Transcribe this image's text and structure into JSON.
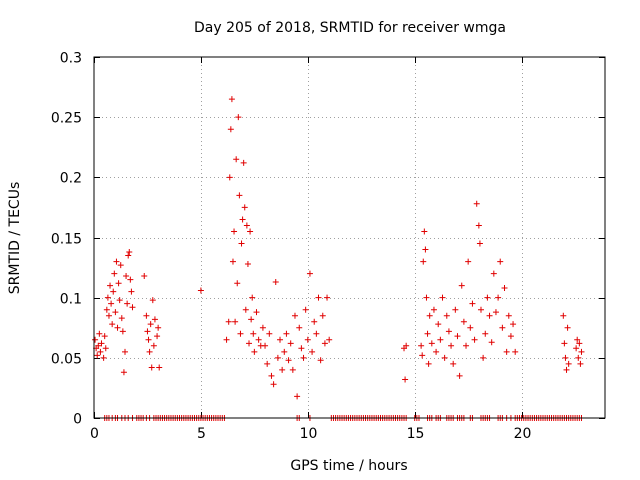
{
  "chart_data": {
    "type": "scatter",
    "title": "Day 205 of 2018, SRMTID for receiver wmga",
    "xlabel": "GPS time / hours",
    "ylabel": "SRMTID / TECUs",
    "xlim": [
      0,
      23.9
    ],
    "ylim": [
      0,
      0.3
    ],
    "grid": true,
    "marker": "+",
    "color": "#e00000",
    "x_ticks": [
      0,
      5,
      10,
      15,
      20
    ],
    "x_tick_labels": [
      "0",
      "5",
      "10",
      "15",
      "20"
    ],
    "y_ticks": [
      0,
      0.05,
      0.1,
      0.15,
      0.2,
      0.25,
      0.3
    ],
    "y_tick_labels": [
      "0",
      "0.05",
      "0.1",
      "0.15",
      "0.2",
      "0.25",
      "0.3"
    ],
    "series": [
      {
        "name": "SRMTID",
        "points": [
          [
            0.05,
            0.065
          ],
          [
            0.1,
            0.058
          ],
          [
            0.15,
            0.052
          ],
          [
            0.2,
            0.06
          ],
          [
            0.25,
            0.07
          ],
          [
            0.3,
            0.055
          ],
          [
            0.35,
            0.062
          ],
          [
            0.45,
            0.05
          ],
          [
            0.5,
            0.068
          ],
          [
            0.55,
            0.058
          ],
          [
            0.6,
            0.09
          ],
          [
            0.65,
            0.1
          ],
          [
            0.7,
            0.085
          ],
          [
            0.75,
            0.11
          ],
          [
            0.8,
            0.095
          ],
          [
            0.85,
            0.078
          ],
          [
            0.9,
            0.105
          ],
          [
            0.95,
            0.12
          ],
          [
            1.0,
            0.088
          ],
          [
            1.05,
            0.13
          ],
          [
            1.1,
            0.075
          ],
          [
            1.15,
            0.112
          ],
          [
            1.2,
            0.098
          ],
          [
            1.25,
            0.127
          ],
          [
            1.3,
            0.083
          ],
          [
            1.35,
            0.072
          ],
          [
            1.4,
            0.038
          ],
          [
            1.45,
            0.055
          ],
          [
            1.5,
            0.118
          ],
          [
            1.55,
            0.095
          ],
          [
            1.6,
            0.135
          ],
          [
            1.65,
            0.138
          ],
          [
            1.7,
            0.115
          ],
          [
            1.75,
            0.105
          ],
          [
            1.8,
            0.092
          ],
          [
            2.35,
            0.118
          ],
          [
            2.45,
            0.085
          ],
          [
            2.5,
            0.072
          ],
          [
            2.55,
            0.065
          ],
          [
            2.6,
            0.055
          ],
          [
            2.65,
            0.078
          ],
          [
            2.7,
            0.042
          ],
          [
            2.75,
            0.098
          ],
          [
            2.8,
            0.06
          ],
          [
            2.85,
            0.082
          ],
          [
            2.95,
            0.068
          ],
          [
            3.0,
            0.075
          ],
          [
            3.05,
            0.042
          ],
          [
            5.0,
            0.106
          ],
          [
            6.2,
            0.065
          ],
          [
            6.3,
            0.08
          ],
          [
            6.35,
            0.2
          ],
          [
            6.4,
            0.24
          ],
          [
            6.45,
            0.265
          ],
          [
            6.5,
            0.13
          ],
          [
            6.55,
            0.155
          ],
          [
            6.6,
            0.08
          ],
          [
            6.65,
            0.215
          ],
          [
            6.7,
            0.112
          ],
          [
            6.75,
            0.25
          ],
          [
            6.8,
            0.185
          ],
          [
            6.85,
            0.07
          ],
          [
            6.9,
            0.145
          ],
          [
            6.95,
            0.165
          ],
          [
            7.0,
            0.212
          ],
          [
            7.05,
            0.175
          ],
          [
            7.1,
            0.09
          ],
          [
            7.15,
            0.16
          ],
          [
            7.2,
            0.128
          ],
          [
            7.25,
            0.062
          ],
          [
            7.3,
            0.155
          ],
          [
            7.35,
            0.082
          ],
          [
            7.4,
            0.1
          ],
          [
            7.45,
            0.07
          ],
          [
            7.5,
            0.055
          ],
          [
            7.6,
            0.088
          ],
          [
            7.7,
            0.065
          ],
          [
            7.8,
            0.06
          ],
          [
            7.9,
            0.075
          ],
          [
            8.0,
            0.06
          ],
          [
            8.1,
            0.045
          ],
          [
            8.2,
            0.07
          ],
          [
            8.3,
            0.035
          ],
          [
            8.4,
            0.028
          ],
          [
            8.5,
            0.113
          ],
          [
            8.6,
            0.05
          ],
          [
            8.7,
            0.065
          ],
          [
            8.8,
            0.04
          ],
          [
            8.9,
            0.055
          ],
          [
            9.0,
            0.07
          ],
          [
            9.1,
            0.048
          ],
          [
            9.2,
            0.062
          ],
          [
            9.3,
            0.04
          ],
          [
            9.4,
            0.085
          ],
          [
            9.5,
            0.018
          ],
          [
            9.6,
            0.075
          ],
          [
            9.7,
            0.058
          ],
          [
            9.8,
            0.05
          ],
          [
            9.9,
            0.09
          ],
          [
            10.0,
            0.065
          ],
          [
            10.1,
            0.12
          ],
          [
            10.2,
            0.055
          ],
          [
            10.3,
            0.08
          ],
          [
            10.4,
            0.07
          ],
          [
            10.5,
            0.1
          ],
          [
            10.6,
            0.048
          ],
          [
            10.7,
            0.085
          ],
          [
            10.8,
            0.062
          ],
          [
            10.9,
            0.1
          ],
          [
            11.0,
            0.065
          ],
          [
            14.5,
            0.058
          ],
          [
            14.55,
            0.032
          ],
          [
            14.6,
            0.06
          ],
          [
            15.3,
            0.06
          ],
          [
            15.35,
            0.052
          ],
          [
            15.4,
            0.13
          ],
          [
            15.45,
            0.155
          ],
          [
            15.5,
            0.14
          ],
          [
            15.55,
            0.1
          ],
          [
            15.6,
            0.07
          ],
          [
            15.65,
            0.045
          ],
          [
            15.7,
            0.085
          ],
          [
            15.8,
            0.062
          ],
          [
            15.9,
            0.09
          ],
          [
            16.0,
            0.055
          ],
          [
            16.1,
            0.078
          ],
          [
            16.2,
            0.065
          ],
          [
            16.3,
            0.1
          ],
          [
            16.4,
            0.05
          ],
          [
            16.5,
            0.085
          ],
          [
            16.6,
            0.072
          ],
          [
            16.7,
            0.06
          ],
          [
            16.8,
            0.045
          ],
          [
            16.9,
            0.09
          ],
          [
            17.0,
            0.068
          ],
          [
            17.1,
            0.035
          ],
          [
            17.2,
            0.11
          ],
          [
            17.3,
            0.08
          ],
          [
            17.4,
            0.06
          ],
          [
            17.5,
            0.13
          ],
          [
            17.6,
            0.075
          ],
          [
            17.7,
            0.095
          ],
          [
            17.8,
            0.065
          ],
          [
            17.9,
            0.178
          ],
          [
            18.0,
            0.16
          ],
          [
            18.05,
            0.145
          ],
          [
            18.1,
            0.09
          ],
          [
            18.2,
            0.05
          ],
          [
            18.3,
            0.07
          ],
          [
            18.4,
            0.1
          ],
          [
            18.5,
            0.085
          ],
          [
            18.6,
            0.063
          ],
          [
            18.7,
            0.12
          ],
          [
            18.8,
            0.088
          ],
          [
            18.9,
            0.1
          ],
          [
            19.0,
            0.13
          ],
          [
            19.1,
            0.075
          ],
          [
            19.2,
            0.108
          ],
          [
            19.3,
            0.055
          ],
          [
            19.4,
            0.085
          ],
          [
            19.5,
            0.068
          ],
          [
            19.6,
            0.078
          ],
          [
            19.7,
            0.055
          ],
          [
            21.95,
            0.085
          ],
          [
            22.0,
            0.062
          ],
          [
            22.05,
            0.05
          ],
          [
            22.1,
            0.04
          ],
          [
            22.15,
            0.075
          ],
          [
            22.2,
            0.045
          ],
          [
            22.55,
            0.058
          ],
          [
            22.6,
            0.065
          ],
          [
            22.65,
            0.05
          ],
          [
            22.7,
            0.062
          ],
          [
            22.75,
            0.045
          ],
          [
            22.8,
            0.055
          ]
        ],
        "zero_points": [
          0.5,
          0.6,
          0.7,
          0.85,
          1.0,
          1.1,
          1.3,
          1.45,
          1.6,
          1.8,
          2.0,
          2.1,
          2.2,
          2.3,
          2.45,
          2.6,
          2.8,
          2.9,
          3.0,
          3.1,
          3.2,
          3.3,
          3.4,
          3.5,
          3.6,
          3.7,
          3.8,
          3.9,
          4.0,
          4.1,
          4.2,
          4.3,
          4.4,
          4.5,
          4.6,
          4.7,
          4.8,
          4.9,
          5.0,
          5.1,
          5.2,
          5.3,
          5.4,
          5.5,
          5.6,
          5.7,
          5.8,
          5.9,
          6.0,
          6.1,
          9.5,
          9.6,
          10.1,
          11.1,
          11.2,
          11.3,
          11.4,
          11.5,
          11.6,
          11.7,
          11.8,
          11.9,
          12.0,
          12.1,
          12.2,
          12.3,
          12.4,
          12.5,
          12.6,
          12.7,
          12.8,
          12.9,
          13.0,
          13.1,
          13.2,
          13.3,
          13.4,
          13.5,
          13.6,
          13.7,
          13.8,
          13.9,
          14.0,
          14.1,
          14.2,
          14.3,
          14.4,
          14.5,
          14.6,
          15.0,
          15.1,
          15.2,
          15.6,
          15.7,
          15.8,
          16.0,
          16.1,
          16.2,
          16.5,
          16.6,
          16.7,
          16.8,
          17.0,
          17.1,
          17.2,
          17.3,
          17.6,
          17.7,
          18.1,
          18.2,
          18.3,
          18.4,
          18.5,
          18.9,
          19.0,
          19.1,
          19.3,
          19.5,
          19.7,
          19.8,
          19.9,
          20.0,
          20.1,
          20.2,
          20.3,
          20.4,
          20.5,
          20.6,
          20.7,
          20.8,
          20.9,
          21.0,
          21.1,
          21.2,
          21.3,
          21.4,
          21.5,
          21.6,
          21.7,
          21.8,
          21.9,
          22.0,
          22.1,
          22.2,
          22.3,
          22.4,
          22.5,
          22.6,
          22.7,
          22.8
        ]
      }
    ]
  }
}
